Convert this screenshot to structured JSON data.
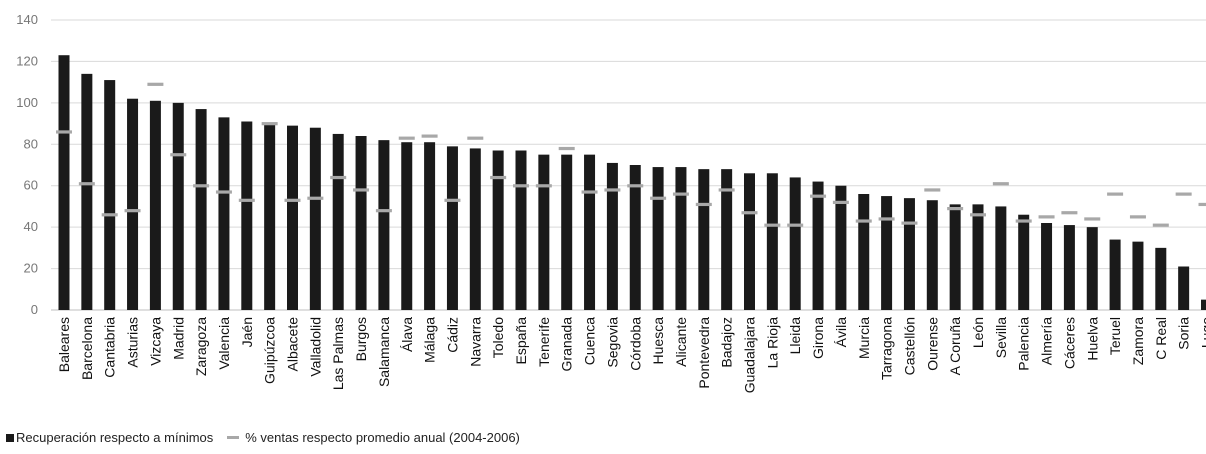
{
  "chart_data": {
    "type": "bar",
    "categories": [
      "Baleares",
      "Barcelona",
      "Cantabria",
      "Asturias",
      "Vizcaya",
      "Madrid",
      "Zaragoza",
      "Valencia",
      "Jaén",
      "Guipúzcoa",
      "Albacete",
      "Valladolid",
      "Las Palmas",
      "Burgos",
      "Salamanca",
      "Álava",
      "Málaga",
      "Cádiz",
      "Navarra",
      "Toledo",
      "España",
      "Tenerife",
      "Granada",
      "Cuenca",
      "Segovia",
      "Córdoba",
      "Huesca",
      "Alicante",
      "Pontevedra",
      "Badajoz",
      "Guadalajara",
      "La Rioja",
      "Lleida",
      "Girona",
      "Ávila",
      "Murcia",
      "Tarragona",
      "Castellón",
      "Ourense",
      "A Coruña",
      "León",
      "Sevilla",
      "Palencia",
      "Almería",
      "Cáceres",
      "Huelva",
      "Teruel",
      "Zamora",
      "C Real",
      "Soria",
      "Lugo"
    ],
    "series": [
      {
        "name": "Recuperación respecto a mínimos",
        "type": "bar",
        "color": "#1a1a1a",
        "values": [
          123,
          114,
          111,
          102,
          101,
          100,
          97,
          93,
          91,
          90,
          89,
          88,
          85,
          84,
          82,
          81,
          81,
          79,
          78,
          77,
          77,
          75,
          75,
          75,
          71,
          70,
          69,
          69,
          68,
          68,
          66,
          66,
          64,
          62,
          60,
          56,
          55,
          54,
          53,
          51,
          51,
          50,
          46,
          42,
          41,
          40,
          34,
          33,
          30,
          21,
          5
        ]
      },
      {
        "name": "% ventas respecto promedio anual (2004-2006)",
        "type": "marker",
        "color": "#a8a8a8",
        "values": [
          86,
          61,
          46,
          48,
          109,
          75,
          60,
          57,
          53,
          90,
          53,
          54,
          64,
          58,
          48,
          83,
          84,
          53,
          83,
          64,
          60,
          60,
          78,
          57,
          58,
          60,
          54,
          56,
          51,
          58,
          47,
          41,
          41,
          55,
          52,
          43,
          44,
          42,
          58,
          49,
          46,
          61,
          43,
          45,
          47,
          44,
          56,
          45,
          41,
          56,
          51
        ]
      }
    ],
    "title": "",
    "xlabel": "",
    "ylabel": "",
    "ylim": [
      0,
      140
    ],
    "yticks": [
      0,
      20,
      40,
      60,
      80,
      100,
      120,
      140
    ],
    "grid": true,
    "legend": "bottom-left"
  }
}
